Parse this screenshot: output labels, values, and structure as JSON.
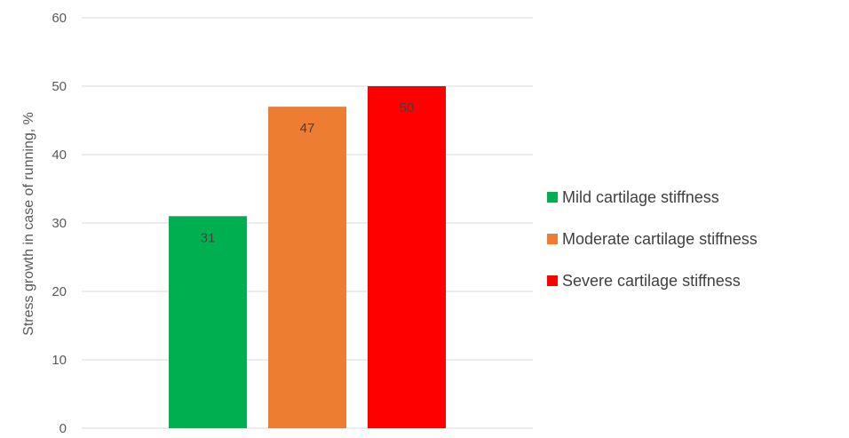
{
  "chart_data": {
    "type": "bar",
    "title": "",
    "xlabel": "",
    "ylabel": "Stress growth in case of running, %",
    "ylim": [
      0,
      60
    ],
    "yticks": [
      0,
      10,
      20,
      30,
      40,
      50,
      60
    ],
    "grid": true,
    "legend_position": "right",
    "data_labels": true,
    "series": [
      {
        "name": "Mild cartilage stiffness",
        "value": 31,
        "label": "31",
        "color": "#00b050"
      },
      {
        "name": "Moderate cartilage stiffness",
        "value": 47,
        "label": "47",
        "color": "#ed7d31"
      },
      {
        "name": "Severe cartilage stiffness",
        "value": 50,
        "label": "50",
        "color": "#ff0000"
      }
    ],
    "colors": {
      "grid": "#d9d9d9",
      "axis_text": "#595959",
      "label_text": "#404040"
    }
  }
}
